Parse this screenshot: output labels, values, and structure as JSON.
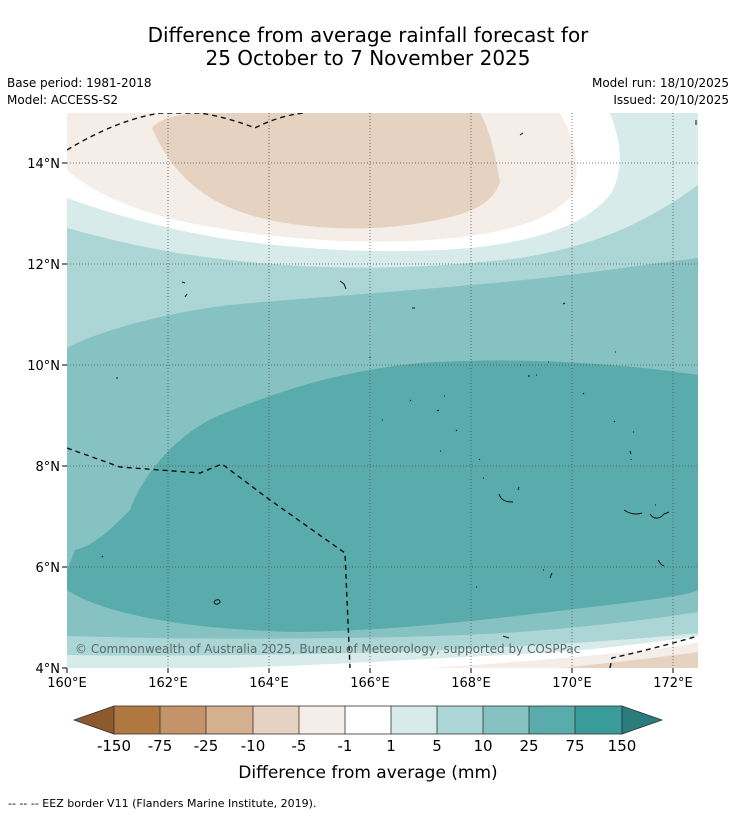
{
  "title_line1": "Difference from average rainfall forecast for",
  "title_line2": "25 October to 7 November 2025",
  "base_period": "Base period: 1981-2018",
  "model": "Model: ACCESS-S2",
  "model_run": "Model run: 18/10/2025",
  "issued": "Issued: 20/10/2025",
  "map": {
    "lat_ticks": [
      "14°N",
      "12°N",
      "10°N",
      "8°N",
      "6°N",
      "4°N"
    ],
    "lon_ticks": [
      "160°E",
      "162°E",
      "164°E",
      "166°E",
      "168°E",
      "170°E",
      "172°E"
    ],
    "copyright": "© Commonwealth of Australia 2025, Bureau of Meteorology, supported by COSPPac"
  },
  "colorbar": {
    "labels": [
      "-150",
      "-75",
      "-25",
      "-10",
      "-5",
      "-1",
      "1",
      "5",
      "10",
      "25",
      "75",
      "150"
    ],
    "colors": [
      "#8c5a2c",
      "#b07840",
      "#c49468",
      "#d4b08e",
      "#e6d2c0",
      "#f4ede8",
      "#ffffff",
      "#d6ebea",
      "#acd6d5",
      "#86c2c1",
      "#5aabab",
      "#3a9b9b",
      "#2a7d7d"
    ],
    "title": "Difference from average (mm)"
  },
  "footnote": "--  --  -- EEZ border V11 (Flanders Marine Institute, 2019)."
}
